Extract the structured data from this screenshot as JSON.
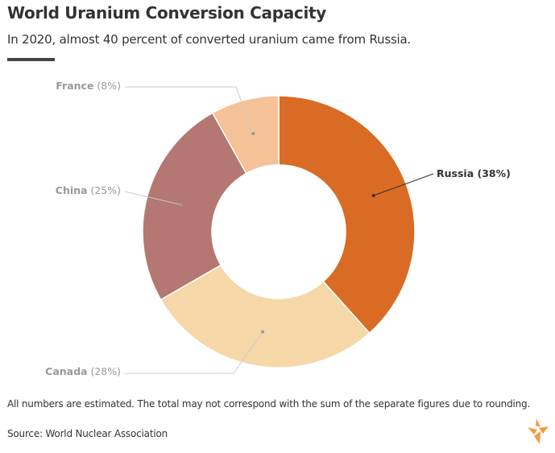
{
  "header": {
    "title": "World Uranium Conversion Capacity",
    "subtitle": "In 2020, almost 40 percent of converted uranium came from Russia."
  },
  "chart_data": {
    "type": "pie",
    "variant": "donut",
    "title": "World Uranium Conversion Capacity",
    "unit": "%",
    "slices": [
      {
        "label": "Russia",
        "value": 38,
        "color": "#d96b24",
        "highlight": true
      },
      {
        "label": "Canada",
        "value": 28,
        "color": "#f6d7a7",
        "highlight": false
      },
      {
        "label": "China",
        "value": 25,
        "color": "#b47771",
        "highlight": false
      },
      {
        "label": "France",
        "value": 8,
        "color": "#f5c196",
        "highlight": false
      }
    ]
  },
  "footer": {
    "note": "All numbers are estimated. The total may not correspond with the sum of the separate figures due to rounding.",
    "source": "Source: World Nuclear Association"
  },
  "colors": {
    "text": "#333333",
    "muted_label": "#999999",
    "leader_line": "#cccccc",
    "logo": "#f39c3c"
  },
  "icons": {
    "logo": "rferl-flame-logo"
  }
}
